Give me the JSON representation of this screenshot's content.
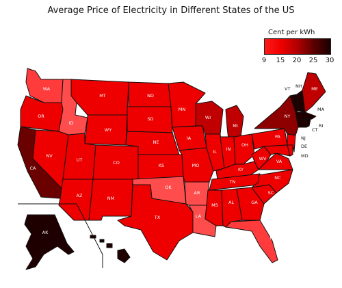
{
  "title": "Average Price of Electricity in Different States of the US",
  "legend": {
    "title": "Cent per kWh",
    "ticks": [
      "9",
      "15",
      "20",
      "25",
      "30"
    ],
    "gradient": [
      "#ff1a1a",
      "#ee0000",
      "#b00000",
      "#5a0000",
      "#1a0000"
    ]
  },
  "states": {
    "WA": "WA",
    "OR": "OR",
    "CA": "CA",
    "NV": "NV",
    "ID": "ID",
    "MT": "MT",
    "WY": "WY",
    "UT": "UT",
    "AZ": "AZ",
    "CO": "CO",
    "NM": "NM",
    "ND": "ND",
    "SD": "SD",
    "NE": "NE",
    "KS": "KS",
    "OK": "OK",
    "TX": "TX",
    "MN": "MN",
    "IA": "IA",
    "MO": "MO",
    "AR": "AR",
    "LA": "LA",
    "WI": "WI",
    "IL": "IL",
    "MI": "MI",
    "IN": "IN",
    "OH": "OH",
    "KY": "KY",
    "TN": "TN",
    "MS": "MS",
    "AL": "AL",
    "GA": "GA",
    "FL": "FL",
    "SC": "SC",
    "NC": "NC",
    "VA": "VA",
    "WV": "WV",
    "PA": "PA",
    "NY": "NY",
    "ME": "ME",
    "VT": "VT",
    "NH": "NH",
    "MA": "MA",
    "RI": "RI",
    "CT": "CT",
    "NJ": "NJ",
    "DE": "DE",
    "MD": "MD",
    "AK": "AK",
    "HI": "HI"
  },
  "colors": {
    "base": "#ee0000",
    "light": "#ff3b3b",
    "lighter": "#ff4d4d",
    "medium": "#c00000",
    "dark": "#8e0000",
    "darker": "#6a0000",
    "darkest": "#1f0000"
  }
}
